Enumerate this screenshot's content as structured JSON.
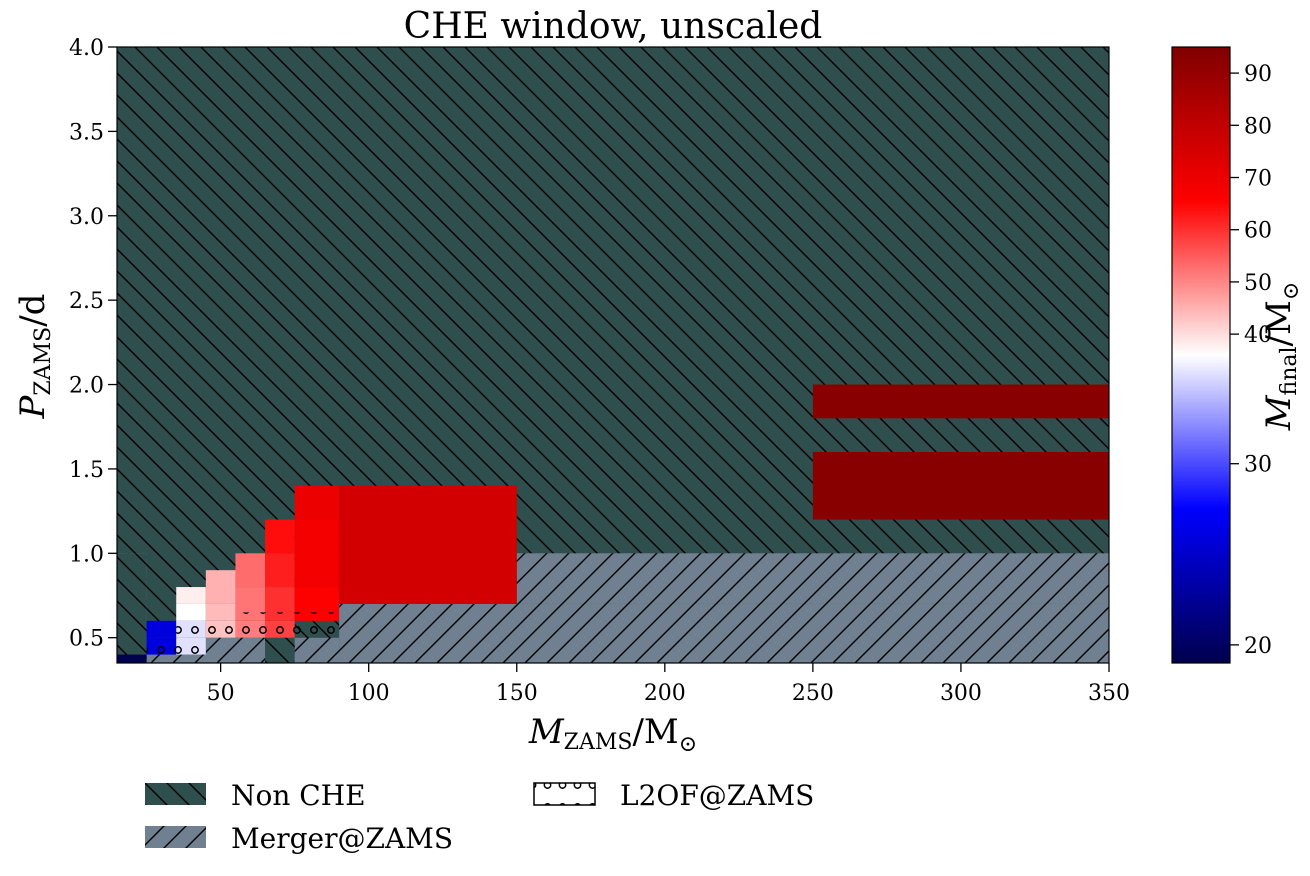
{
  "chart_data": {
    "type": "heatmap",
    "title": "CHE window, unscaled",
    "xlabel": {
      "main": "M",
      "sub": "ZAMS",
      "unit": "/M",
      "unit_sub": "⊙"
    },
    "ylabel": {
      "main": "P",
      "sub": "ZAMS",
      "unit": "/d"
    },
    "colorbar_label": {
      "main": "M",
      "sub": "final",
      "unit": "/M",
      "unit_sub": "⊙"
    },
    "xlim": [
      15,
      350
    ],
    "ylim": [
      0.35,
      4.0
    ],
    "x_ticks": [
      50,
      100,
      150,
      200,
      250,
      300,
      350
    ],
    "y_ticks": [
      0.5,
      1.0,
      1.5,
      2.0,
      2.5,
      3.0,
      3.5,
      4.0
    ],
    "x_tick_labels": [
      "50",
      "100",
      "150",
      "200",
      "250",
      "300",
      "350"
    ],
    "y_tick_labels": [
      "0.5",
      "1.0",
      "1.5",
      "2.0",
      "2.5",
      "3.0",
      "3.5",
      "4.0"
    ],
    "colorbar_range": [
      19,
      95
    ],
    "colorbar_ticks": [
      20,
      30,
      40,
      50,
      60,
      70,
      80,
      90
    ],
    "colorbar_tick_labels": [
      "20",
      "30",
      "40",
      "50",
      "60",
      "70",
      "80",
      "90"
    ],
    "colormap": "seismic",
    "background": {
      "label": "Non CHE",
      "color": "#2f4f4f",
      "hatch": "\\"
    },
    "merger_region": {
      "label": "Merger@ZAMS",
      "color": "#708090",
      "hatch": "/"
    },
    "l2of_region": {
      "label": "L2OF@ZAMS",
      "hatch": "o"
    },
    "legend_position": "bottom-outside",
    "cells": [
      {
        "x": [
          15,
          25
        ],
        "y": [
          0.35,
          0.4
        ],
        "m": 19
      },
      {
        "x": [
          25,
          35
        ],
        "y": [
          0.4,
          0.5
        ],
        "m": 26
      },
      {
        "x": [
          25,
          35
        ],
        "y": [
          0.5,
          0.6
        ],
        "m": 26
      },
      {
        "x": [
          35,
          45
        ],
        "y": [
          0.4,
          0.5
        ],
        "m": 35
      },
      {
        "x": [
          35,
          45
        ],
        "y": [
          0.5,
          0.6
        ],
        "m": 35
      },
      {
        "x": [
          35,
          45
        ],
        "y": [
          0.6,
          0.7
        ],
        "m": 36
      },
      {
        "x": [
          35,
          45
        ],
        "y": [
          0.7,
          0.8
        ],
        "m": 38
      },
      {
        "x": [
          45,
          55
        ],
        "y": [
          0.5,
          0.6
        ],
        "m": 43
      },
      {
        "x": [
          45,
          55
        ],
        "y": [
          0.6,
          0.7
        ],
        "m": 44
      },
      {
        "x": [
          45,
          55
        ],
        "y": [
          0.7,
          0.9
        ],
        "m": 45
      },
      {
        "x": [
          55,
          65
        ],
        "y": [
          0.5,
          0.6
        ],
        "m": 51
      },
      {
        "x": [
          55,
          65
        ],
        "y": [
          0.6,
          0.8
        ],
        "m": 52
      },
      {
        "x": [
          55,
          65
        ],
        "y": [
          0.8,
          1.0
        ],
        "m": 53
      },
      {
        "x": [
          65,
          75
        ],
        "y": [
          0.5,
          0.6
        ],
        "m": 58
      },
      {
        "x": [
          65,
          75
        ],
        "y": [
          0.6,
          0.8
        ],
        "m": 60
      },
      {
        "x": [
          65,
          75
        ],
        "y": [
          0.8,
          1.0
        ],
        "m": 62
      },
      {
        "x": [
          65,
          75
        ],
        "y": [
          1.0,
          1.2
        ],
        "m": 64
      },
      {
        "x": [
          75,
          90
        ],
        "y": [
          0.6,
          0.8
        ],
        "m": 66
      },
      {
        "x": [
          75,
          90
        ],
        "y": [
          0.8,
          1.2
        ],
        "m": 68
      },
      {
        "x": [
          75,
          90
        ],
        "y": [
          1.2,
          1.4
        ],
        "m": 70
      },
      {
        "x": [
          90,
          150
        ],
        "y": [
          0.7,
          1.4
        ],
        "m": 76
      },
      {
        "x": [
          250,
          350
        ],
        "y": [
          1.2,
          1.6
        ],
        "m": 93
      },
      {
        "x": [
          250,
          350
        ],
        "y": [
          1.8,
          2.0
        ],
        "m": 93
      }
    ],
    "merger_rects": [
      {
        "x": [
          15,
          25
        ],
        "y": [
          0.35,
          1.0
        ]
      },
      {
        "x": [
          25,
          90
        ],
        "y": [
          0.35,
          0.4
        ]
      },
      {
        "x": [
          45,
          65
        ],
        "y": [
          0.35,
          0.5
        ]
      },
      {
        "x": [
          75,
          90
        ],
        "y": [
          0.35,
          0.5
        ]
      },
      {
        "x": [
          90,
          350
        ],
        "y": [
          0.35,
          0.7
        ]
      },
      {
        "x": [
          150,
          350
        ],
        "y": [
          0.7,
          1.0
        ]
      }
    ],
    "nonche_rects": [
      {
        "x": [
          15,
          25
        ],
        "y": [
          0.35,
          1.0
        ]
      },
      {
        "x": [
          65,
          75
        ],
        "y": [
          0.35,
          0.45
        ]
      },
      {
        "x": [
          65,
          75
        ],
        "y": [
          0.5,
          0.6
        ]
      },
      {
        "x": [
          75,
          90
        ],
        "y": [
          0.5,
          0.6
        ]
      }
    ],
    "l2of_rects": [
      {
        "x": [
          25,
          35
        ],
        "y": [
          0.4,
          0.5
        ]
      },
      {
        "x": [
          35,
          45
        ],
        "y": [
          0.4,
          0.6
        ]
      },
      {
        "x": [
          45,
          90
        ],
        "y": [
          0.5,
          0.6
        ]
      },
      {
        "x": [
          55,
          90
        ],
        "y": [
          0.6,
          0.65
        ]
      },
      {
        "x": [
          90,
          150
        ],
        "y": [
          0.7,
          0.75
        ]
      }
    ]
  },
  "legend": {
    "items": [
      {
        "label": "Non CHE"
      },
      {
        "label": "Merger@ZAMS"
      },
      {
        "label": "L2OF@ZAMS"
      }
    ]
  }
}
